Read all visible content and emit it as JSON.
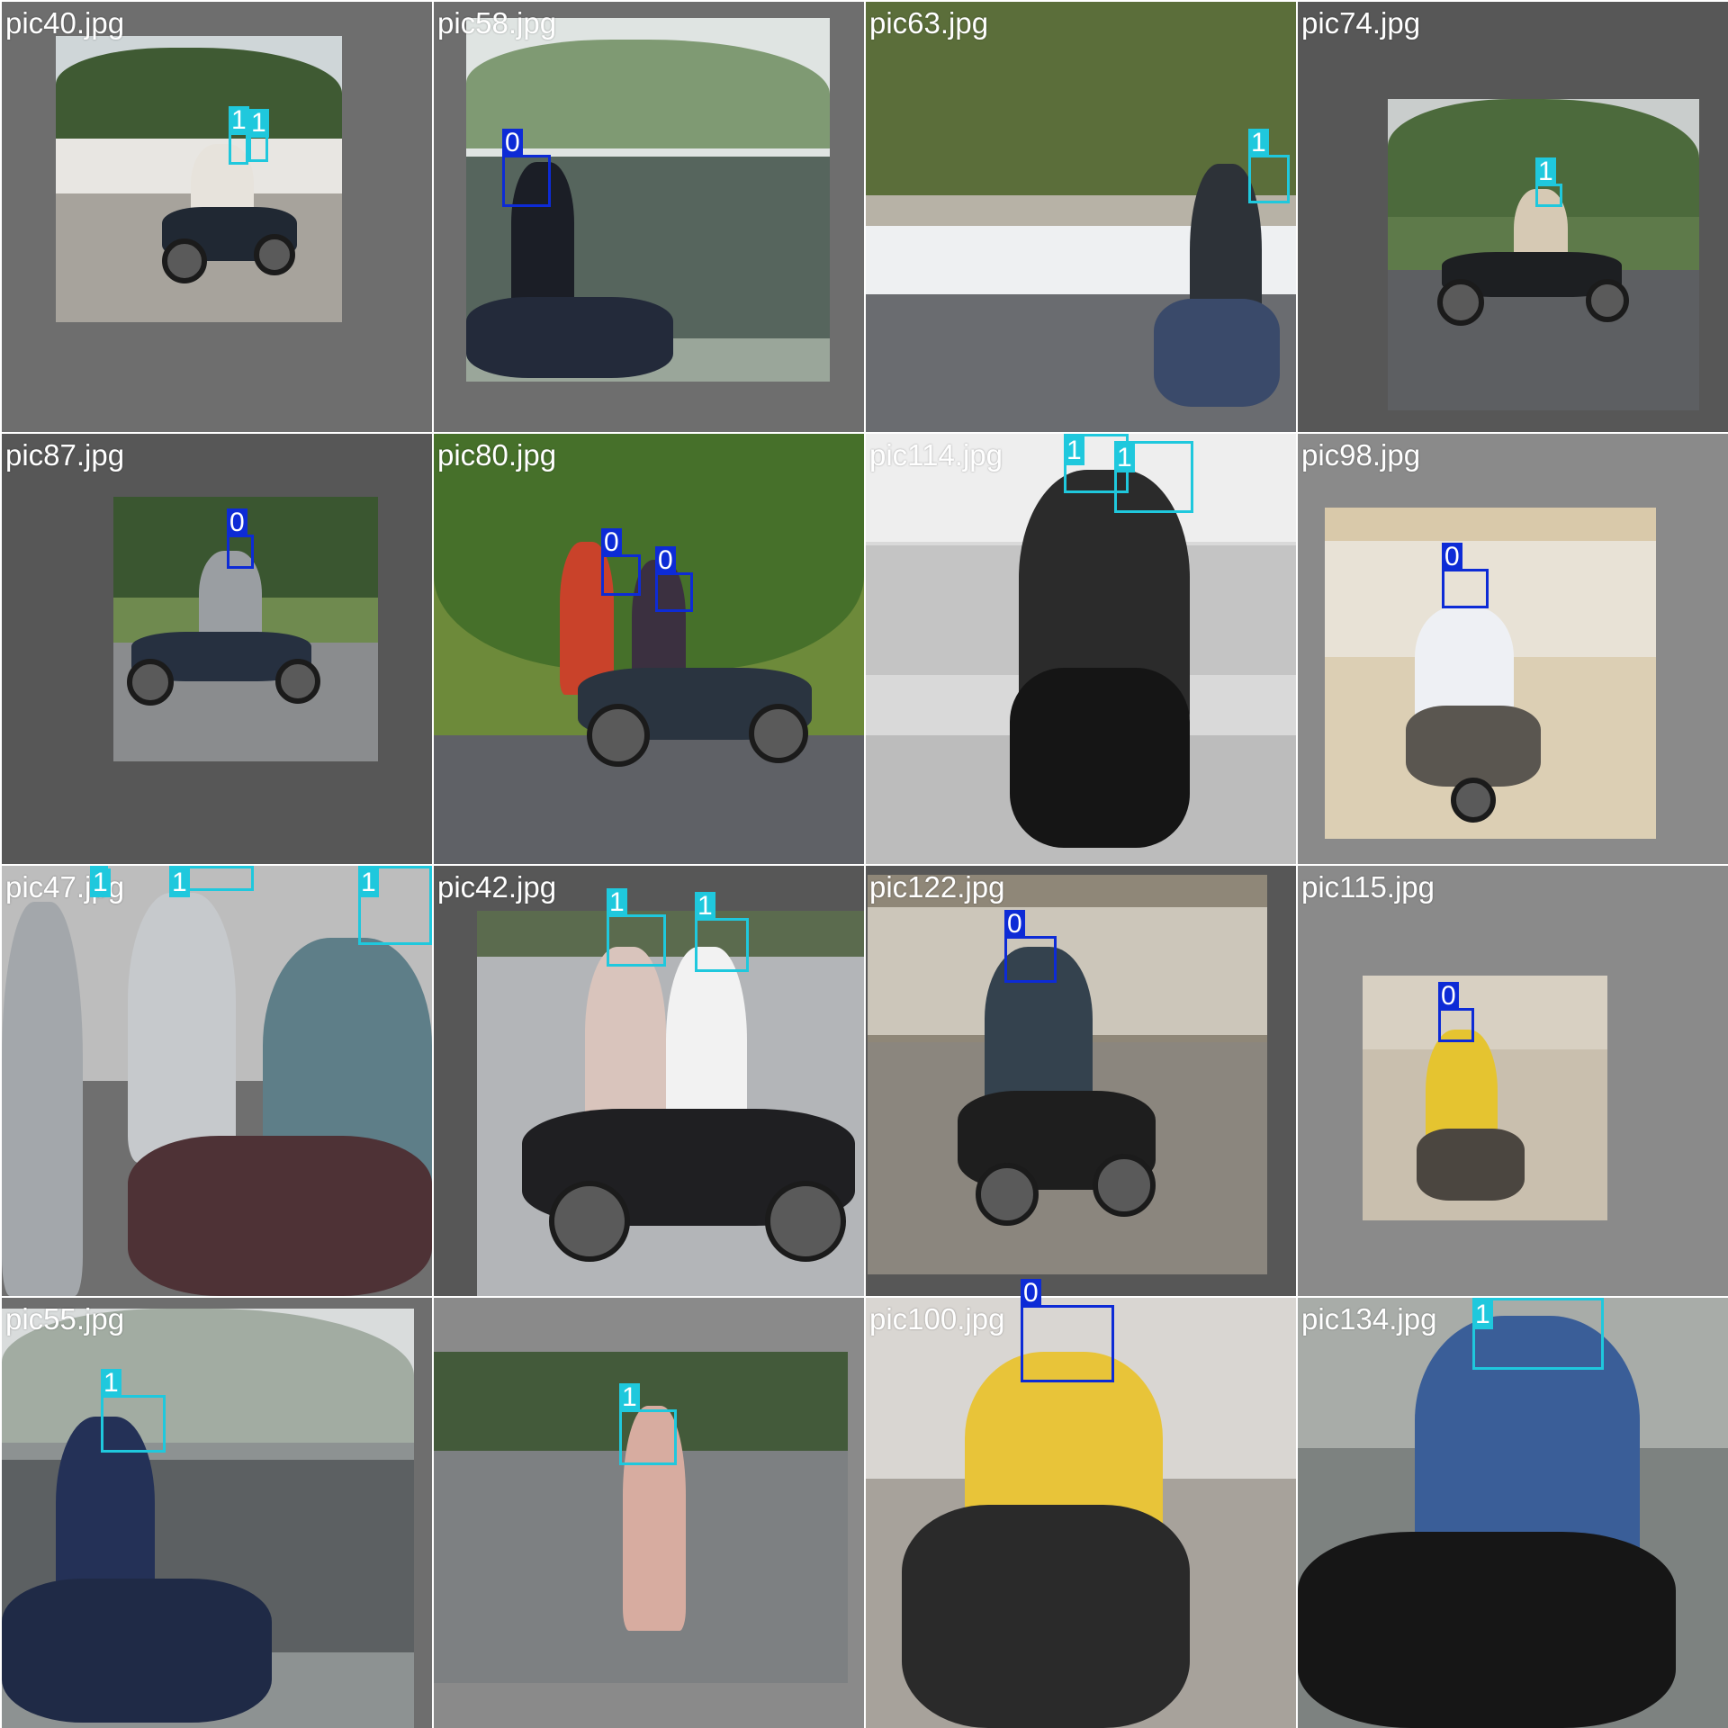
{
  "colors": {
    "class_0": "#0d2bd6",
    "class_1": "#1fc8dd",
    "label_text": "#ffffff"
  },
  "tiles": [
    {
      "filename": "pic40.jpg",
      "labels": [
        "1",
        "1"
      ]
    },
    {
      "filename": "pic58.jpg",
      "labels": [
        "0"
      ]
    },
    {
      "filename": "pic63.jpg",
      "labels": [
        "1"
      ]
    },
    {
      "filename": "pic74.jpg",
      "labels": [
        "1"
      ]
    },
    {
      "filename": "pic87.jpg",
      "labels": [
        "0"
      ]
    },
    {
      "filename": "pic80.jpg",
      "labels": [
        "0",
        "0"
      ]
    },
    {
      "filename": "pic114.jpg",
      "labels": [
        "1",
        "1"
      ]
    },
    {
      "filename": "pic98.jpg",
      "labels": [
        "0"
      ]
    },
    {
      "filename": "pic47.jpg",
      "labels": [
        "1",
        "1",
        "1"
      ]
    },
    {
      "filename": "pic42.jpg",
      "labels": [
        "1",
        "1"
      ]
    },
    {
      "filename": "pic122.jpg",
      "labels": [
        "0"
      ]
    },
    {
      "filename": "pic115.jpg",
      "labels": [
        "0"
      ]
    },
    {
      "filename": "pic55.jpg",
      "labels": [
        "1"
      ]
    },
    {
      "filename": "",
      "labels": [
        "1"
      ]
    },
    {
      "filename": "pic100.jpg",
      "labels": [
        "0"
      ]
    },
    {
      "filename": "pic134.jpg",
      "labels": [
        "1"
      ]
    }
  ]
}
